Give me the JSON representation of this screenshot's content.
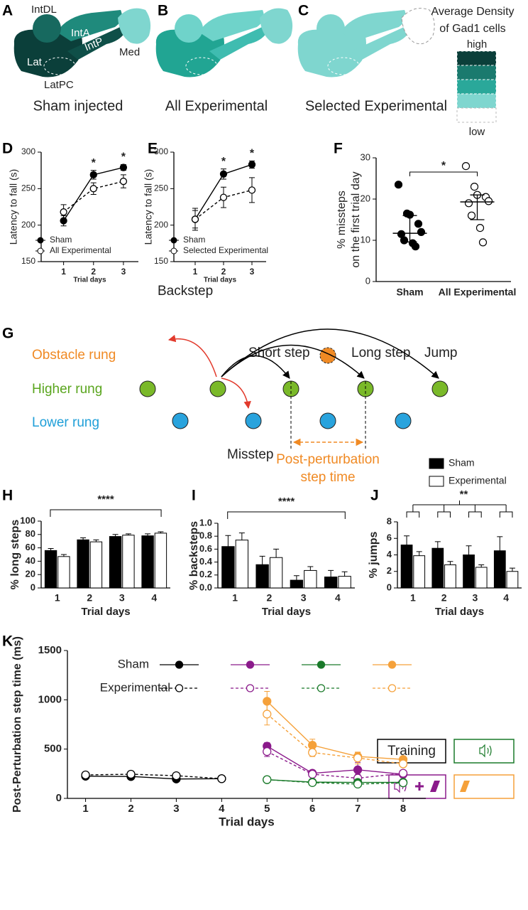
{
  "panel_labels": [
    "A",
    "B",
    "C",
    "D",
    "E",
    "F",
    "G",
    "H",
    "I",
    "J",
    "K"
  ],
  "brain": {
    "regions": [
      "IntDL",
      "IntA",
      "IntP",
      "Lat",
      "LatPC",
      "Med"
    ],
    "captions": [
      "Sham injected",
      "All Experimental",
      "Selected Experimental"
    ],
    "legend_title": [
      "Average Density",
      "of Gad1 cells"
    ],
    "legend_ends": [
      "high",
      "low"
    ]
  },
  "diagram": {
    "rungs": [
      "Obstacle rung",
      "Higher rung",
      "Lower rung"
    ],
    "steps": [
      "Backstep",
      "Short step",
      "Long step",
      "Jump",
      "Misstep"
    ],
    "time_label": [
      "Post-perturbation",
      "step time"
    ]
  },
  "chart_data": [
    {
      "type": "line",
      "ylabel": "Latency to fall (s)",
      "xlabel": "Trial days",
      "x": [
        1,
        2,
        3
      ],
      "xlim": [
        0.25,
        3.5
      ],
      "xticks": [
        1,
        2,
        3
      ],
      "ylim": [
        150,
        300
      ],
      "yticks": [
        150,
        200,
        250,
        300
      ],
      "series": [
        {
          "name": "Sham",
          "color": "#000000",
          "marker": "filled",
          "dashed": false,
          "values": [
            206,
            269,
            279
          ],
          "errors": [
            7,
            6,
            4
          ]
        },
        {
          "name": "All Experimental",
          "color": "#000000",
          "marker": "open",
          "dashed": true,
          "values": [
            218,
            250,
            260
          ],
          "errors": [
            10,
            8,
            9
          ]
        }
      ],
      "significance": [
        null,
        "*",
        "*"
      ]
    },
    {
      "type": "line",
      "ylabel": "Latency to fall (s)",
      "xlabel": "Trial days",
      "x": [
        1,
        2,
        3
      ],
      "xlim": [
        0.25,
        3.5
      ],
      "xticks": [
        1,
        2,
        3
      ],
      "ylim": [
        150,
        300
      ],
      "yticks": [
        150,
        200,
        250,
        300
      ],
      "series": [
        {
          "name": "Sham",
          "color": "#000000",
          "marker": "filled",
          "dashed": false,
          "values": [
            208,
            270,
            283
          ],
          "errors": [
            15,
            7,
            5
          ]
        },
        {
          "name": "Selected Experimental",
          "color": "#000000",
          "marker": "open",
          "dashed": true,
          "values": [
            208,
            238,
            248
          ],
          "errors": [
            12,
            14,
            17
          ]
        }
      ],
      "significance": [
        null,
        "*",
        "*"
      ]
    },
    {
      "type": "scatter",
      "ylabel": [
        "% missteps",
        "on the first trial day"
      ],
      "categories": [
        "Sham",
        "All Experimental"
      ],
      "ylim": [
        0,
        30
      ],
      "yticks": [
        0,
        10,
        20,
        30
      ],
      "series": [
        {
          "marker": "filled",
          "values": [
            23.5,
            16.5,
            16.2,
            14,
            12,
            11.5,
            10,
            9.3,
            8.5
          ],
          "median": 11.7,
          "q1": 9.6,
          "q3": 16
        },
        {
          "marker": "open",
          "values": [
            28,
            23,
            21,
            20.5,
            19.5,
            19,
            16,
            13,
            9.5
          ],
          "median": 19.3,
          "q1": 15,
          "q3": 21
        }
      ],
      "significance": "*"
    },
    {
      "type": "bar",
      "ylabel": "% long steps",
      "xlabel": "Trial days",
      "categories": [
        "1",
        "2",
        "3",
        "4"
      ],
      "ylim": [
        0,
        100
      ],
      "yticks": [
        0,
        20,
        40,
        60,
        80,
        100
      ],
      "series": [
        {
          "name": "Sham",
          "color": "#000000",
          "values": [
            56,
            72,
            77,
            78
          ],
          "errors": [
            3,
            3,
            3,
            3
          ]
        },
        {
          "name": "Experimental",
          "color": "#ffffff",
          "values": [
            47,
            69,
            79,
            82
          ],
          "errors": [
            3,
            3,
            2,
            2
          ]
        }
      ],
      "significance": "****"
    },
    {
      "type": "bar",
      "ylabel": "% backsteps",
      "xlabel": "Trial days",
      "categories": [
        "1",
        "2",
        "3",
        "4"
      ],
      "ylim": [
        0,
        1
      ],
      "yticks": [
        {
          "value": 0,
          "label": "0.0"
        },
        0.2,
        0.4,
        0.6,
        0.8,
        {
          "value": 1,
          "label": "1.0"
        }
      ],
      "series": [
        {
          "color": "#000000",
          "values": [
            0.64,
            0.36,
            0.12,
            0.17
          ],
          "errors": [
            0.17,
            0.13,
            0.07,
            0.1
          ]
        },
        {
          "color": "#ffffff",
          "values": [
            0.74,
            0.47,
            0.27,
            0.18
          ],
          "errors": [
            0.11,
            0.13,
            0.06,
            0.07
          ]
        }
      ],
      "significance": "****"
    },
    {
      "type": "bar",
      "ylabel": "% jumps",
      "xlabel": "Trial days",
      "categories": [
        "1",
        "2",
        "3",
        "4"
      ],
      "ylim": [
        0,
        8
      ],
      "yticks": [
        0,
        2,
        4,
        6,
        8
      ],
      "series": [
        {
          "color": "#000000",
          "values": [
            5.2,
            4.8,
            4.0,
            4.5
          ],
          "errors": [
            1.1,
            0.8,
            1.1,
            1.7
          ]
        },
        {
          "color": "#ffffff",
          "values": [
            3.9,
            2.8,
            2.5,
            2.0
          ],
          "errors": [
            0.5,
            0.4,
            0.3,
            0.4
          ]
        }
      ],
      "significance": "**"
    },
    {
      "type": "line",
      "ylabel": "Post-Perturbation step time (ms)",
      "xlabel": "Trial days",
      "xlim": [
        0.6,
        8.5
      ],
      "xticks": [
        1,
        2,
        3,
        4,
        5,
        6,
        7,
        8
      ],
      "ylim": [
        0,
        1500
      ],
      "yticks": [
        0,
        500,
        1000,
        1500
      ],
      "condition_label": "Training",
      "series": [
        {
          "name": "Sham",
          "color": "#000000",
          "marker": "filled",
          "dashed": false,
          "x": [
            1,
            2,
            3,
            4
          ],
          "values": [
            225,
            222,
            197,
            200
          ],
          "errors": [
            10,
            8,
            8,
            8
          ]
        },
        {
          "name": "Experimental",
          "color": "#000000",
          "marker": "open",
          "dashed": true,
          "x": [
            1,
            2,
            3,
            4
          ],
          "values": [
            238,
            245,
            230,
            200
          ],
          "errors": [
            8,
            8,
            8,
            8
          ]
        },
        {
          "name": "Sham",
          "color": "#8b1a8b",
          "marker": "filled",
          "dashed": false,
          "x": [
            5,
            6,
            7,
            8
          ],
          "values": [
            530,
            255,
            290,
            245
          ],
          "errors": [
            35,
            25,
            75,
            35
          ]
        },
        {
          "name": "Experimental",
          "color": "#8b1a8b",
          "marker": "open",
          "dashed": true,
          "x": [
            5,
            6,
            7,
            8
          ],
          "values": [
            475,
            245,
            205,
            255
          ],
          "errors": [
            50,
            20,
            40,
            30
          ]
        },
        {
          "name": "Sham",
          "color": "#1a7a2a",
          "marker": "filled",
          "dashed": false,
          "x": [
            5,
            6,
            7,
            8
          ],
          "values": [
            190,
            165,
            162,
            163
          ],
          "errors": [
            10,
            8,
            10,
            8
          ]
        },
        {
          "name": "Experimental",
          "color": "#1a7a2a",
          "marker": "open",
          "dashed": true,
          "x": [
            5,
            6,
            7,
            8
          ],
          "values": [
            190,
            160,
            145,
            158
          ],
          "errors": [
            10,
            8,
            8,
            8
          ]
        },
        {
          "name": "Sham",
          "color": "#f5a13a",
          "marker": "filled",
          "dashed": false,
          "x": [
            5,
            6,
            7,
            8
          ],
          "values": [
            985,
            540,
            425,
            395
          ],
          "errors": [
            100,
            60,
            40,
            20
          ]
        },
        {
          "name": "Experimental",
          "color": "#f5a13a",
          "marker": "open",
          "dashed": true,
          "x": [
            5,
            6,
            7,
            8
          ],
          "values": [
            855,
            465,
            410,
            350
          ],
          "errors": [
            110,
            40,
            60,
            30
          ]
        }
      ]
    }
  ]
}
